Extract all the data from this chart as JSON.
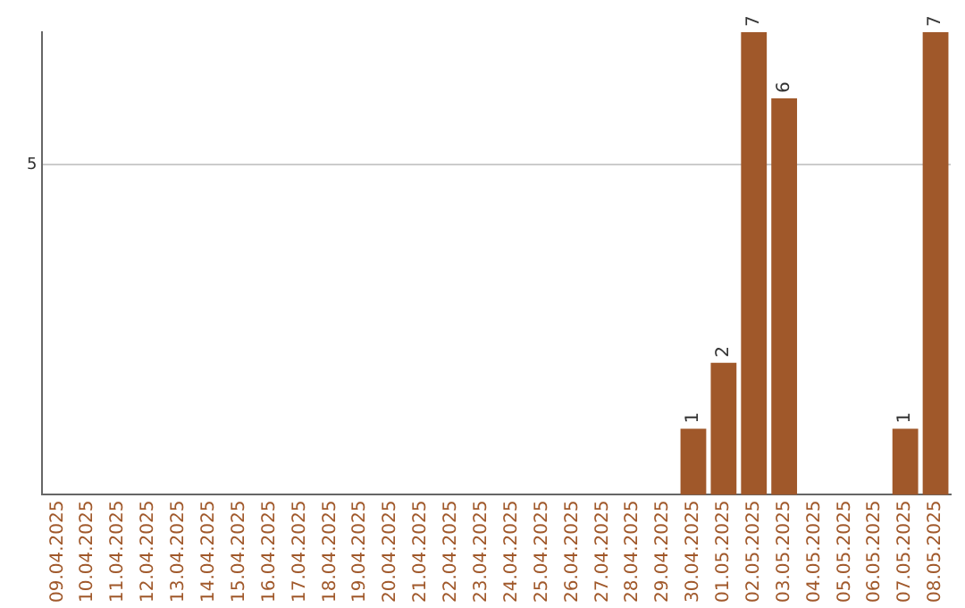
{
  "chart_data": {
    "type": "bar",
    "categories": [
      "09.04.2025",
      "10.04.2025",
      "11.04.2025",
      "12.04.2025",
      "13.04.2025",
      "14.04.2025",
      "15.04.2025",
      "16.04.2025",
      "17.04.2025",
      "18.04.2025",
      "19.04.2025",
      "20.04.2025",
      "21.04.2025",
      "22.04.2025",
      "23.04.2025",
      "24.04.2025",
      "25.04.2025",
      "26.04.2025",
      "27.04.2025",
      "28.04.2025",
      "29.04.2025",
      "30.04.2025",
      "01.05.2025",
      "02.05.2025",
      "03.05.2025",
      "04.05.2025",
      "05.05.2025",
      "06.05.2025",
      "07.05.2025",
      "08.05.2025"
    ],
    "values": [
      null,
      null,
      null,
      null,
      null,
      null,
      null,
      null,
      null,
      null,
      null,
      null,
      null,
      null,
      null,
      null,
      null,
      null,
      null,
      null,
      null,
      1,
      2,
      7,
      6,
      null,
      null,
      null,
      1,
      7
    ],
    "data_labels": true,
    "color": "#a0582a",
    "ylim": [
      0,
      7
    ],
    "yticks": [
      5
    ],
    "grid": "y",
    "legend": false
  }
}
